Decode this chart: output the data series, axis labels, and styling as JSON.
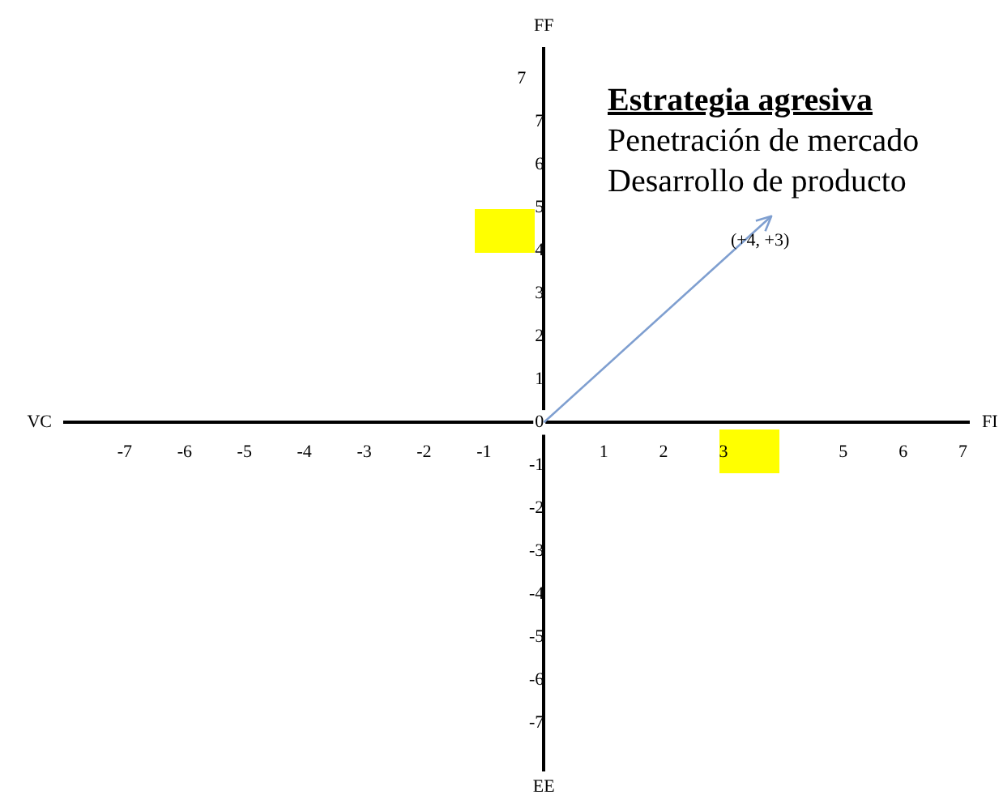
{
  "chart_data": {
    "type": "line",
    "title": "Estrategia agresiva",
    "xlabel": "FI",
    "ylabel": "FF",
    "annotations": [
      "Penetración de mercado",
      "Desarrollo de producto",
      "VC",
      "EE",
      "7",
      {
        "text": "(+4, +3)",
        "x": 3.8,
        "y": 4.8
      }
    ],
    "x": [
      0,
      3.8
    ],
    "series": [
      {
        "color": "#7f9fd0",
        "values": [
          0,
          4.8
        ]
      }
    ],
    "xlim": [
      -8,
      7.1
    ],
    "ylim": [
      -8.1,
      8.7
    ],
    "xticks": [
      -7,
      -6,
      -5,
      -4,
      -3,
      -2,
      -1,
      1,
      2,
      3,
      5,
      6,
      7
    ],
    "yticks": [
      -7,
      -6,
      -5,
      -4,
      -3,
      -2,
      -1,
      0,
      1,
      2,
      3,
      4,
      5,
      6,
      7
    ],
    "grid": false,
    "legend": false,
    "marker": "none",
    "line_style": "solid"
  }
}
